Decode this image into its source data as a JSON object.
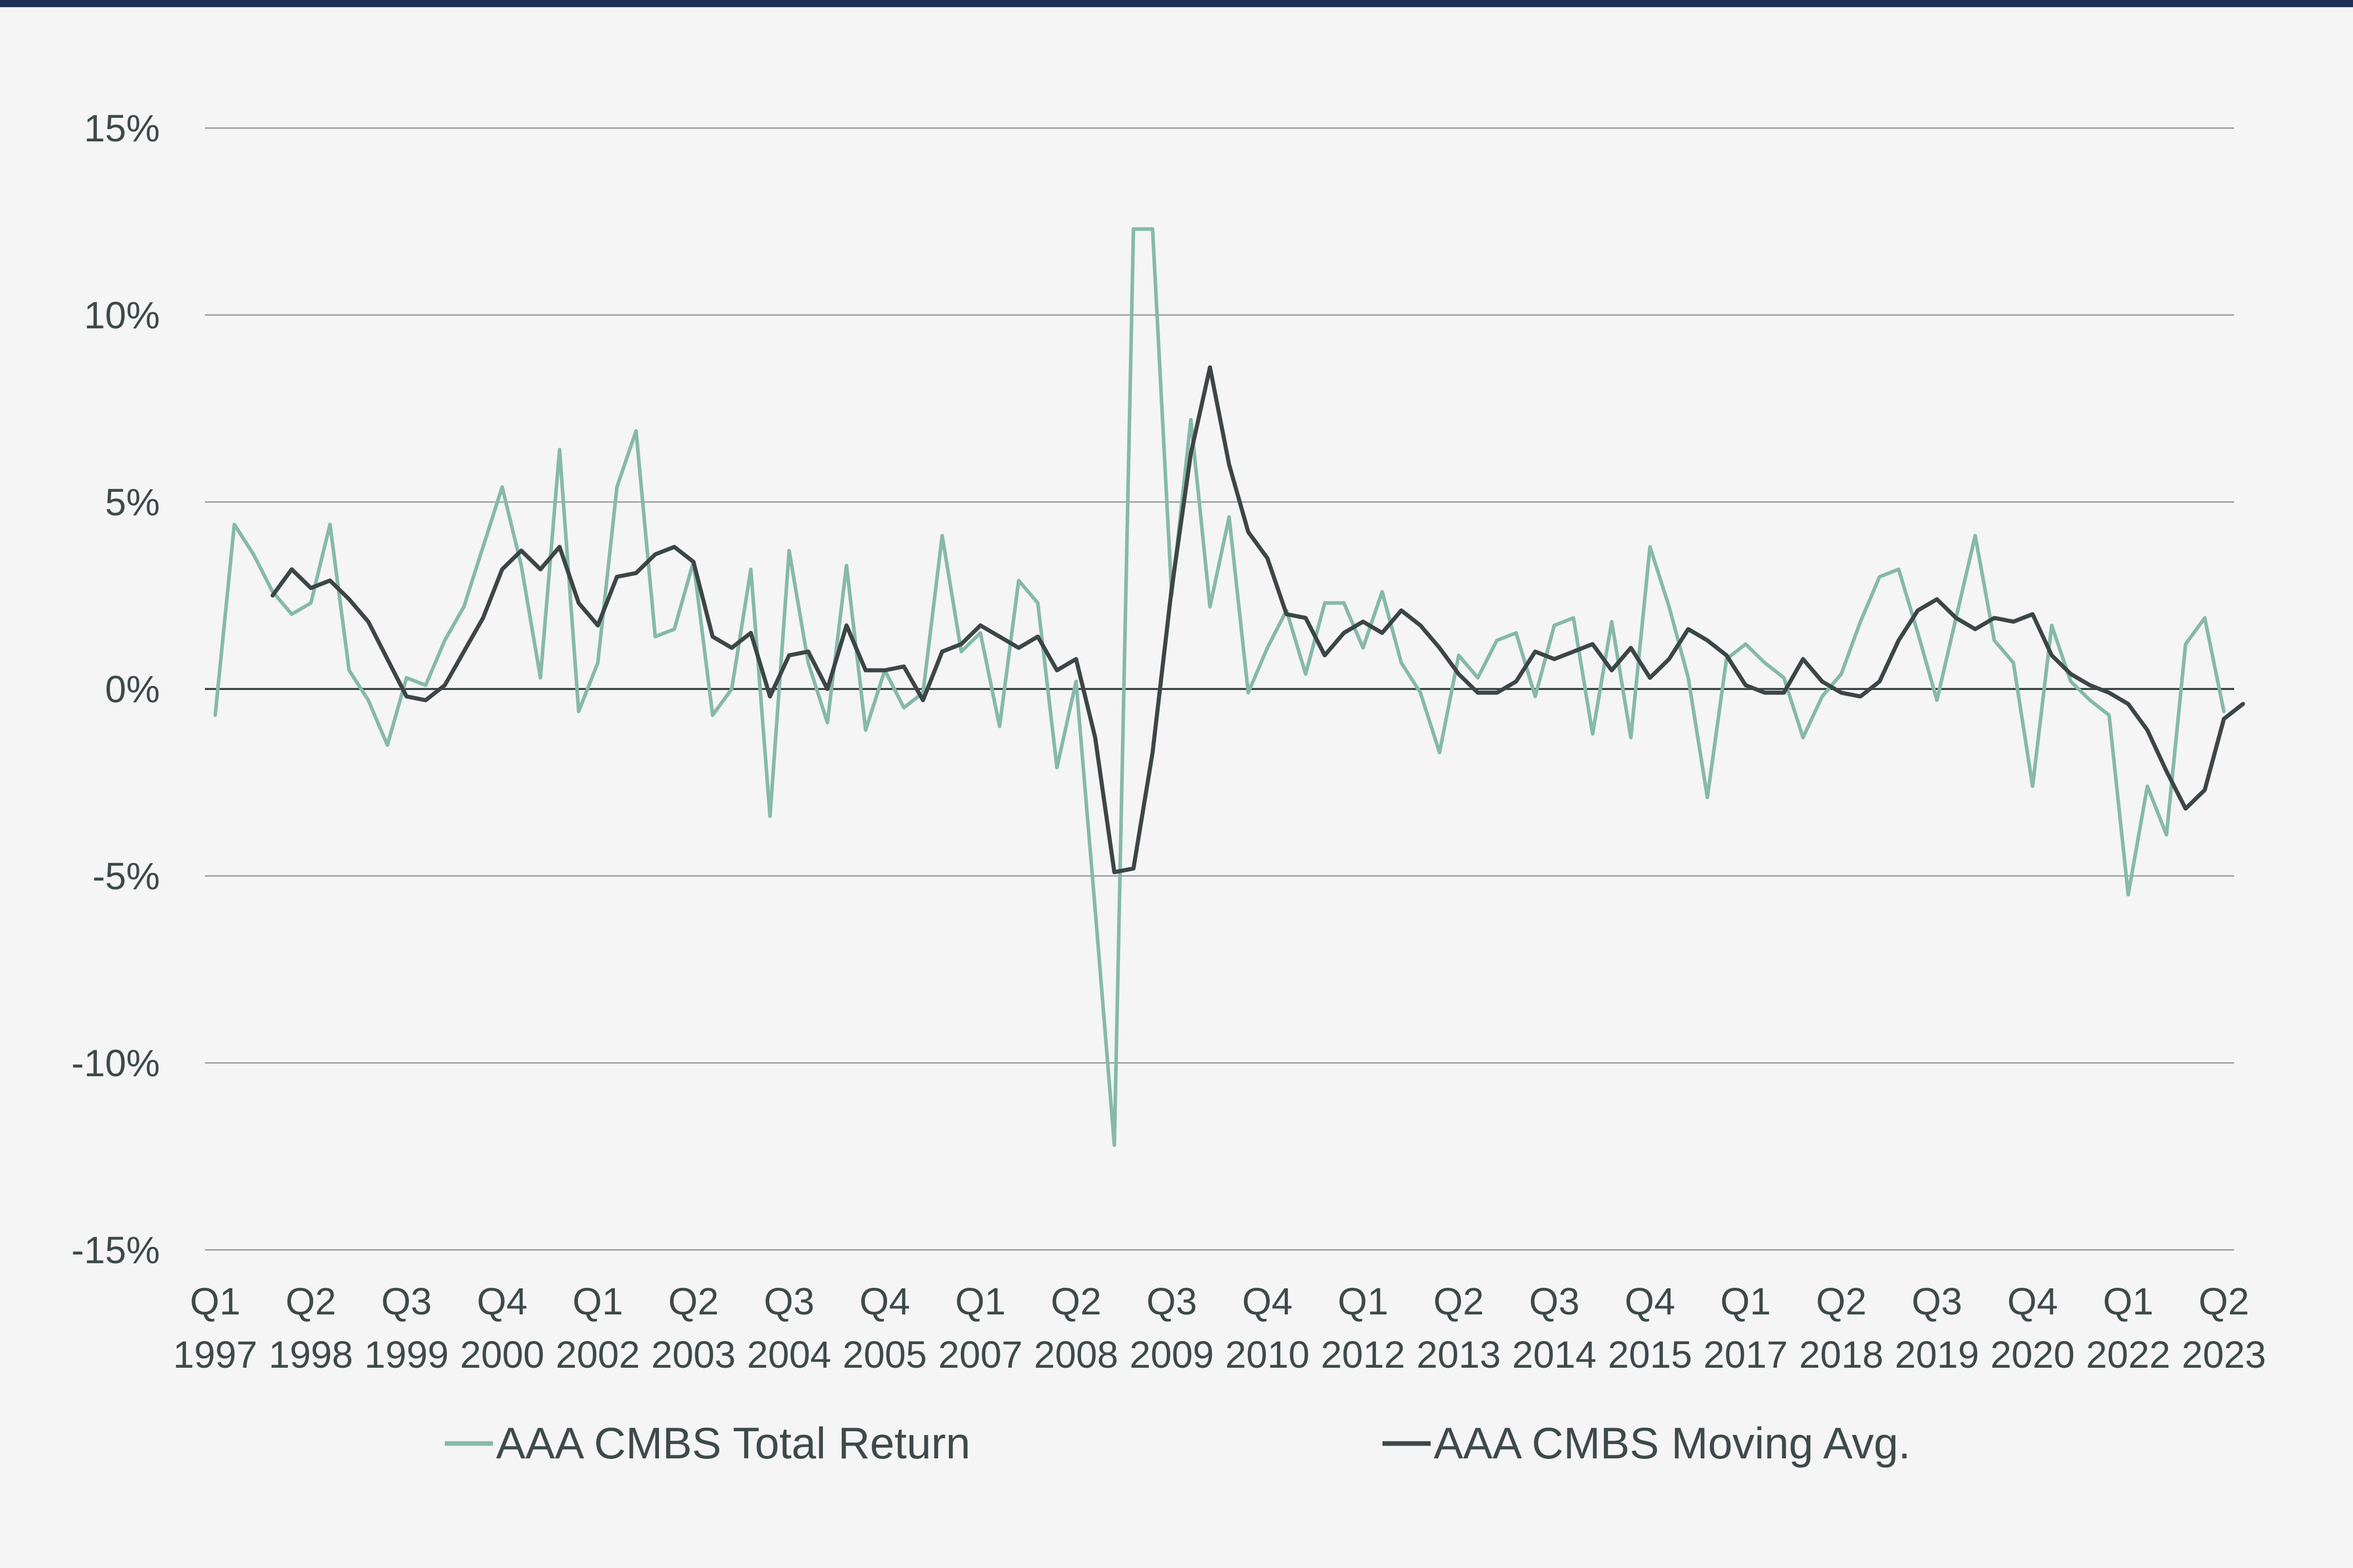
{
  "chart_data": {
    "type": "line",
    "title": "",
    "xlabel": "",
    "ylabel": "",
    "ylim": [
      -15,
      15
    ],
    "y_tick_values": [
      15,
      10,
      5,
      0,
      -5,
      -10,
      -15
    ],
    "y_tick_labels": [
      "15%",
      "10%",
      "5%",
      "0%",
      "-5%",
      "-10%",
      "-15%"
    ],
    "grid": true,
    "legend_position": "bottom",
    "x_start": "1997 Q1",
    "x_end": "2023 Q2",
    "x_ticks": [
      {
        "quarter": "Q1",
        "year": "1997",
        "t": 0
      },
      {
        "quarter": "Q2",
        "year": "1998",
        "t": 5
      },
      {
        "quarter": "Q3",
        "year": "1999",
        "t": 10
      },
      {
        "quarter": "Q4",
        "year": "2000",
        "t": 15
      },
      {
        "quarter": "Q1",
        "year": "2002",
        "t": 20
      },
      {
        "quarter": "Q2",
        "year": "2003",
        "t": 25
      },
      {
        "quarter": "Q3",
        "year": "2004",
        "t": 30
      },
      {
        "quarter": "Q4",
        "year": "2005",
        "t": 35
      },
      {
        "quarter": "Q1",
        "year": "2007",
        "t": 40
      },
      {
        "quarter": "Q2",
        "year": "2008",
        "t": 45
      },
      {
        "quarter": "Q3",
        "year": "2009",
        "t": 50
      },
      {
        "quarter": "Q4",
        "year": "2010",
        "t": 55
      },
      {
        "quarter": "Q1",
        "year": "2012",
        "t": 60
      },
      {
        "quarter": "Q2",
        "year": "2013",
        "t": 65
      },
      {
        "quarter": "Q3",
        "year": "2014",
        "t": 70
      },
      {
        "quarter": "Q4",
        "year": "2015",
        "t": 75
      },
      {
        "quarter": "Q1",
        "year": "2017",
        "t": 80
      },
      {
        "quarter": "Q2",
        "year": "2018",
        "t": 85
      },
      {
        "quarter": "Q3",
        "year": "2019",
        "t": 90
      },
      {
        "quarter": "Q4",
        "year": "2020",
        "t": 95
      },
      {
        "quarter": "Q1",
        "year": "2022",
        "t": 100
      },
      {
        "quarter": "Q2",
        "year": "2023",
        "t": 105
      }
    ],
    "series": [
      {
        "name": "AAA CMBS Total Return",
        "color": "#86b9a8",
        "start_index": 0,
        "values": [
          -0.7,
          4.4,
          3.6,
          2.6,
          2.0,
          2.3,
          4.4,
          0.5,
          -0.3,
          -1.5,
          0.3,
          0.1,
          1.3,
          2.2,
          3.8,
          5.4,
          3.3,
          0.3,
          6.4,
          -0.6,
          0.7,
          5.4,
          6.9,
          1.4,
          1.6,
          3.4,
          -0.7,
          0.0,
          3.2,
          -3.4,
          3.7,
          0.7,
          -0.9,
          3.3,
          -1.1,
          0.5,
          -0.5,
          -0.1,
          4.1,
          1.0,
          1.5,
          -1.0,
          2.9,
          2.3,
          -2.1,
          0.2,
          -5.9,
          -12.2,
          12.3,
          12.3,
          2.5,
          7.2,
          2.2,
          4.6,
          -0.1,
          1.1,
          2.1,
          0.4,
          2.3,
          2.3,
          1.1,
          2.6,
          0.7,
          -0.1,
          -1.7,
          0.9,
          0.3,
          1.3,
          1.5,
          -0.2,
          1.7,
          1.9,
          -1.2,
          1.8,
          -1.3,
          3.8,
          2.2,
          0.3,
          -2.9,
          0.8,
          1.2,
          0.7,
          0.3,
          -1.3,
          -0.2,
          0.4,
          1.8,
          3.0,
          3.2,
          1.5,
          -0.3,
          1.9,
          4.1,
          1.3,
          0.7,
          -2.6,
          1.7,
          0.2,
          -0.3,
          -0.7,
          -5.5,
          -2.6,
          -3.9,
          1.2,
          1.9,
          -0.6
        ]
      },
      {
        "name": "AAA CMBS Moving Avg.",
        "color": "#3d4647",
        "start_index": 3,
        "values": [
          2.5,
          3.2,
          2.7,
          2.9,
          2.4,
          1.8,
          0.8,
          -0.2,
          -0.3,
          0.1,
          1.0,
          1.9,
          3.2,
          3.7,
          3.2,
          3.8,
          2.3,
          1.7,
          3.0,
          3.1,
          3.6,
          3.8,
          3.4,
          1.4,
          1.1,
          1.5,
          -0.2,
          0.9,
          1.0,
          0.0,
          1.7,
          0.5,
          0.5,
          0.6,
          -0.3,
          1.0,
          1.2,
          1.7,
          1.4,
          1.1,
          1.4,
          0.5,
          0.8,
          -1.3,
          -4.9,
          -4.8,
          -1.7,
          2.7,
          6.3,
          8.6,
          6.0,
          4.2,
          3.5,
          2.0,
          1.9,
          0.9,
          1.5,
          1.8,
          1.5,
          2.1,
          1.7,
          1.1,
          0.4,
          -0.1,
          -0.1,
          0.2,
          1.0,
          0.8,
          1.0,
          1.2,
          0.5,
          1.1,
          0.3,
          0.8,
          1.6,
          1.3,
          0.9,
          0.1,
          -0.1,
          -0.1,
          0.8,
          0.2,
          -0.1,
          -0.2,
          0.2,
          1.3,
          2.1,
          2.4,
          1.9,
          1.6,
          1.9,
          1.8,
          2.0,
          0.9,
          0.4,
          0.1,
          -0.1,
          -0.4,
          -1.1,
          -2.2,
          -3.2,
          -2.7,
          -0.8,
          -0.4
        ]
      }
    ]
  }
}
